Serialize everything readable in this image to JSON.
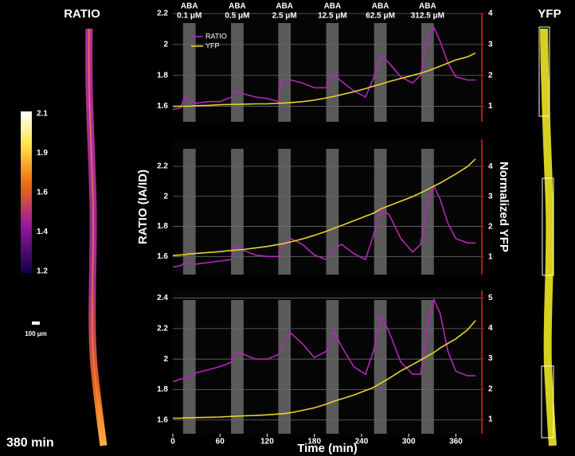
{
  "figure": {
    "left_title": "RATIO",
    "right_title": "YFP",
    "colorbar_labels": [
      2.1,
      1.9,
      1.6,
      1.4,
      1.2
    ],
    "scale_bar_label": "100 μm",
    "time_label": "380 min"
  },
  "chart_data": [
    {
      "type": "line",
      "treatments": [
        {
          "label": "ABA",
          "concentration": "0.1 μM",
          "start": 13,
          "end": 29
        },
        {
          "label": "ABA",
          "concentration": "0.5 μM",
          "start": 74,
          "end": 90
        },
        {
          "label": "ABA",
          "concentration": "2.5 μM",
          "start": 134,
          "end": 150
        },
        {
          "label": "ABA",
          "concentration": "12.5 μM",
          "start": 195,
          "end": 211
        },
        {
          "label": "ABA",
          "concentration": "62.5 μM",
          "start": 256,
          "end": 272
        },
        {
          "label": "ABA",
          "concentration": "312.5 μM",
          "start": 316,
          "end": 332
        }
      ],
      "x": [
        0,
        10,
        15,
        20,
        30,
        45,
        60,
        75,
        78,
        90,
        105,
        120,
        135,
        138,
        150,
        165,
        180,
        195,
        205,
        215,
        230,
        245,
        255,
        265,
        275,
        290,
        305,
        315,
        325,
        332,
        340,
        350,
        360,
        375,
        385
      ],
      "xlim": [
        0,
        393
      ],
      "ylim": [
        1.5,
        2.2
      ],
      "yticks": [
        1.6,
        1.8,
        2,
        2.2
      ],
      "y2lim": [
        0.5,
        4
      ],
      "y2ticks": [
        1,
        2,
        3,
        4
      ],
      "grid": true,
      "series": [
        {
          "name": "RATIO",
          "color": "#b327b8",
          "values": [
            1.58,
            1.59,
            1.66,
            1.64,
            1.62,
            1.63,
            1.63,
            1.66,
            1.7,
            1.68,
            1.66,
            1.65,
            1.63,
            1.77,
            1.77,
            1.75,
            1.72,
            1.72,
            1.8,
            1.76,
            1.7,
            1.66,
            1.78,
            1.93,
            1.88,
            1.79,
            1.75,
            1.8,
            2.05,
            2.11,
            2.02,
            1.88,
            1.79,
            1.77,
            1.77
          ]
        },
        {
          "name": "YFP",
          "color": "#e6d22a",
          "axis": "y2",
          "values": [
            1.0,
            1.0,
            1.0,
            1.0,
            1.02,
            1.03,
            1.05,
            1.06,
            1.06,
            1.07,
            1.08,
            1.08,
            1.1,
            1.1,
            1.12,
            1.15,
            1.2,
            1.27,
            1.32,
            1.38,
            1.47,
            1.57,
            1.65,
            1.72,
            1.8,
            1.9,
            2.0,
            2.07,
            2.15,
            2.22,
            2.3,
            2.4,
            2.5,
            2.6,
            2.72
          ]
        }
      ]
    },
    {
      "type": "line",
      "ylabel": "RATIO (IA/ID)",
      "y2label": "Normalized YFP",
      "x": [
        0,
        10,
        15,
        20,
        30,
        45,
        60,
        75,
        78,
        90,
        105,
        120,
        135,
        138,
        150,
        165,
        180,
        195,
        205,
        215,
        230,
        245,
        255,
        265,
        275,
        290,
        305,
        315,
        325,
        332,
        340,
        350,
        360,
        375,
        385
      ],
      "xlim": [
        0,
        393
      ],
      "ylim": [
        1.48,
        2.38
      ],
      "yticks": [
        1.6,
        1.8,
        2,
        2.2
      ],
      "y2lim": [
        0.42,
        4.9
      ],
      "y2ticks": [
        1,
        2,
        3,
        4
      ],
      "grid": true,
      "series": [
        {
          "color": "#b327b8",
          "values": [
            1.53,
            1.54,
            1.56,
            1.55,
            1.55,
            1.56,
            1.57,
            1.58,
            1.67,
            1.64,
            1.61,
            1.6,
            1.6,
            1.66,
            1.72,
            1.68,
            1.61,
            1.58,
            1.66,
            1.68,
            1.62,
            1.58,
            1.74,
            1.91,
            1.88,
            1.72,
            1.63,
            1.68,
            1.98,
            2.07,
            1.98,
            1.82,
            1.72,
            1.69,
            1.69
          ]
        },
        {
          "color": "#e6d22a",
          "axis": "y2",
          "values": [
            1.05,
            1.07,
            1.08,
            1.1,
            1.12,
            1.15,
            1.18,
            1.22,
            1.22,
            1.25,
            1.3,
            1.35,
            1.42,
            1.43,
            1.5,
            1.6,
            1.72,
            1.85,
            1.95,
            2.05,
            2.2,
            2.35,
            2.45,
            2.6,
            2.7,
            2.85,
            3.0,
            3.12,
            3.25,
            3.35,
            3.45,
            3.6,
            3.75,
            4.0,
            4.25
          ]
        }
      ]
    },
    {
      "type": "line",
      "xlabel": "Time (min)",
      "x": [
        0,
        10,
        15,
        20,
        30,
        45,
        60,
        75,
        78,
        90,
        105,
        120,
        135,
        138,
        150,
        165,
        180,
        195,
        205,
        215,
        230,
        245,
        255,
        265,
        275,
        290,
        305,
        315,
        325,
        332,
        340,
        350,
        360,
        375,
        385
      ],
      "xlim": [
        0,
        393
      ],
      "xticks": [
        0,
        60,
        120,
        180,
        240,
        300,
        360
      ],
      "ylim": [
        1.51,
        2.45
      ],
      "yticks": [
        1.6,
        1.8,
        2,
        2.2,
        2.4
      ],
      "y2lim": [
        0.53,
        5.24
      ],
      "y2ticks": [
        1,
        2,
        3,
        4,
        5
      ],
      "grid": true,
      "series": [
        {
          "color": "#b327b8",
          "values": [
            1.85,
            1.87,
            1.87,
            1.88,
            1.91,
            1.93,
            1.95,
            1.98,
            2.05,
            2.03,
            2.0,
            2.0,
            2.03,
            2.08,
            2.17,
            2.1,
            2.01,
            2.05,
            2.18,
            2.08,
            1.95,
            1.9,
            2.05,
            2.28,
            2.18,
            1.98,
            1.9,
            1.9,
            2.25,
            2.39,
            2.3,
            2.05,
            1.92,
            1.89,
            1.89
          ]
        },
        {
          "color": "#e6d22a",
          "axis": "y2",
          "values": [
            1.04,
            1.04,
            1.05,
            1.05,
            1.06,
            1.07,
            1.08,
            1.1,
            1.1,
            1.12,
            1.13,
            1.15,
            1.18,
            1.18,
            1.22,
            1.3,
            1.38,
            1.5,
            1.6,
            1.68,
            1.8,
            1.95,
            2.05,
            2.2,
            2.35,
            2.6,
            2.8,
            2.95,
            3.1,
            3.2,
            3.35,
            3.5,
            3.65,
            3.95,
            4.25
          ]
        }
      ]
    }
  ]
}
